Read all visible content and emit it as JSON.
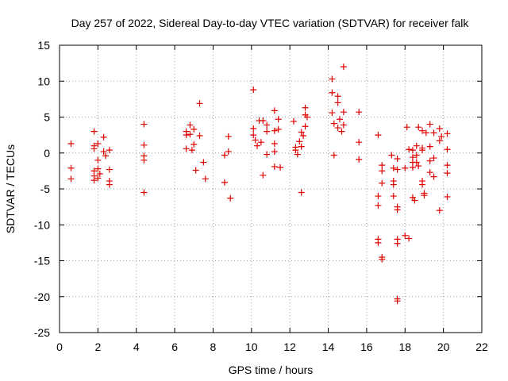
{
  "chart_data": {
    "type": "scatter",
    "title": "Day 257 of 2022, Sidereal Day-to-day VTEC variation (SDTVAR) for receiver falk",
    "xlabel": "GPS time / hours",
    "ylabel": "SDTVAR / TECUs",
    "xlim": [
      0,
      22
    ],
    "ylim": [
      -25,
      15
    ],
    "xticks": [
      0,
      2,
      4,
      6,
      8,
      10,
      12,
      14,
      16,
      18,
      20,
      22
    ],
    "yticks": [
      -25,
      -20,
      -15,
      -10,
      -5,
      0,
      5,
      10,
      15
    ],
    "grid": true,
    "marker": "+",
    "color": "#e00000",
    "series": [
      {
        "name": "SDTVAR",
        "points": [
          [
            0.6,
            1.3
          ],
          [
            0.6,
            -2.1
          ],
          [
            0.6,
            -3.6
          ],
          [
            1.8,
            3.0
          ],
          [
            1.8,
            1.0
          ],
          [
            1.8,
            0.6
          ],
          [
            1.8,
            -2.5
          ],
          [
            1.8,
            -3.2
          ],
          [
            1.8,
            -3.8
          ],
          [
            2.0,
            1.3
          ],
          [
            2.0,
            -1.0
          ],
          [
            2.0,
            -2.2
          ],
          [
            2.0,
            -3.5
          ],
          [
            2.1,
            -2.9
          ],
          [
            2.3,
            2.2
          ],
          [
            2.3,
            0.2
          ],
          [
            2.4,
            -0.4
          ],
          [
            2.6,
            0.4
          ],
          [
            2.6,
            -2.3
          ],
          [
            2.6,
            -3.9
          ],
          [
            2.6,
            -4.4
          ],
          [
            4.4,
            4.0
          ],
          [
            4.4,
            1.1
          ],
          [
            4.4,
            -0.4
          ],
          [
            4.4,
            -1.0
          ],
          [
            4.4,
            -5.5
          ],
          [
            6.6,
            3.0
          ],
          [
            6.6,
            2.5
          ],
          [
            6.6,
            0.6
          ],
          [
            6.8,
            3.9
          ],
          [
            6.8,
            2.6
          ],
          [
            6.9,
            0.4
          ],
          [
            7.0,
            3.3
          ],
          [
            7.0,
            1.2
          ],
          [
            7.1,
            -2.4
          ],
          [
            7.3,
            6.9
          ],
          [
            7.3,
            2.4
          ],
          [
            7.5,
            -1.3
          ],
          [
            7.6,
            -3.6
          ],
          [
            8.6,
            -0.3
          ],
          [
            8.6,
            -4.1
          ],
          [
            8.8,
            2.3
          ],
          [
            8.8,
            0.2
          ],
          [
            8.9,
            -6.3
          ],
          [
            10.1,
            8.8
          ],
          [
            10.1,
            3.4
          ],
          [
            10.1,
            2.5
          ],
          [
            10.2,
            1.8
          ],
          [
            10.3,
            1.0
          ],
          [
            10.4,
            4.5
          ],
          [
            10.5,
            1.5
          ],
          [
            10.6,
            -3.1
          ],
          [
            10.6,
            4.5
          ],
          [
            10.8,
            3.9
          ],
          [
            10.8,
            3.0
          ],
          [
            10.8,
            -0.2
          ],
          [
            11.2,
            5.9
          ],
          [
            11.2,
            3.1
          ],
          [
            11.2,
            1.3
          ],
          [
            11.2,
            0.2
          ],
          [
            11.2,
            -1.9
          ],
          [
            11.4,
            4.7
          ],
          [
            11.4,
            3.3
          ],
          [
            11.5,
            -2.0
          ],
          [
            12.2,
            4.4
          ],
          [
            12.3,
            0.8
          ],
          [
            12.3,
            0.4
          ],
          [
            12.4,
            -0.2
          ],
          [
            12.5,
            1.6
          ],
          [
            12.6,
            2.9
          ],
          [
            12.6,
            0.9
          ],
          [
            12.6,
            -5.5
          ],
          [
            12.7,
            2.4
          ],
          [
            12.8,
            6.3
          ],
          [
            12.8,
            5.3
          ],
          [
            12.8,
            3.7
          ],
          [
            12.9,
            5.0
          ],
          [
            14.2,
            10.3
          ],
          [
            14.2,
            8.4
          ],
          [
            14.2,
            5.6
          ],
          [
            14.3,
            4.1
          ],
          [
            14.3,
            -0.3
          ],
          [
            14.5,
            7.9
          ],
          [
            14.5,
            7.0
          ],
          [
            14.5,
            3.5
          ],
          [
            14.6,
            4.7
          ],
          [
            14.7,
            3.0
          ],
          [
            14.8,
            12.0
          ],
          [
            14.8,
            5.7
          ],
          [
            14.8,
            3.9
          ],
          [
            15.6,
            5.7
          ],
          [
            15.6,
            1.5
          ],
          [
            15.6,
            -0.9
          ],
          [
            16.6,
            2.5
          ],
          [
            16.6,
            -6.0
          ],
          [
            16.6,
            -7.3
          ],
          [
            16.6,
            -12.0
          ],
          [
            16.6,
            -12.5
          ],
          [
            16.8,
            -1.7
          ],
          [
            16.8,
            -2.5
          ],
          [
            16.8,
            -4.2
          ],
          [
            16.8,
            -14.5
          ],
          [
            16.8,
            -14.8
          ],
          [
            17.3,
            -0.3
          ],
          [
            17.4,
            -2.1
          ],
          [
            17.4,
            -3.9
          ],
          [
            17.4,
            -4.4
          ],
          [
            17.4,
            -6.0
          ],
          [
            17.6,
            -0.8
          ],
          [
            17.6,
            -2.3
          ],
          [
            17.6,
            -7.5
          ],
          [
            17.6,
            -7.9
          ],
          [
            17.6,
            -12.0
          ],
          [
            17.6,
            -12.6
          ],
          [
            17.6,
            -20.3
          ],
          [
            17.6,
            -20.6
          ],
          [
            18.0,
            -2.1
          ],
          [
            18.0,
            -11.5
          ],
          [
            18.1,
            3.6
          ],
          [
            18.2,
            0.5
          ],
          [
            18.2,
            -11.9
          ],
          [
            18.4,
            0.4
          ],
          [
            18.4,
            -0.6
          ],
          [
            18.4,
            -1.3
          ],
          [
            18.4,
            -2.0
          ],
          [
            18.4,
            -6.2
          ],
          [
            18.5,
            -6.6
          ],
          [
            18.6,
            1.0
          ],
          [
            18.6,
            -0.3
          ],
          [
            18.6,
            -1.3
          ],
          [
            18.7,
            3.6
          ],
          [
            18.7,
            -1.8
          ],
          [
            18.9,
            3.1
          ],
          [
            18.9,
            0.7
          ],
          [
            18.9,
            0.4
          ],
          [
            18.9,
            -3.9
          ],
          [
            18.9,
            -4.4
          ],
          [
            19.0,
            -5.6
          ],
          [
            19.0,
            -5.9
          ],
          [
            19.1,
            2.8
          ],
          [
            19.3,
            4.0
          ],
          [
            19.3,
            0.9
          ],
          [
            19.3,
            -1.1
          ],
          [
            19.3,
            -2.7
          ],
          [
            19.5,
            2.8
          ],
          [
            19.5,
            -0.7
          ],
          [
            19.5,
            -3.3
          ],
          [
            19.8,
            3.4
          ],
          [
            19.8,
            1.7
          ],
          [
            19.8,
            -8.0
          ],
          [
            19.9,
            2.3
          ],
          [
            20.2,
            2.7
          ],
          [
            20.2,
            0.5
          ],
          [
            20.2,
            -1.7
          ],
          [
            20.2,
            -2.8
          ],
          [
            20.2,
            -6.1
          ]
        ]
      }
    ]
  }
}
